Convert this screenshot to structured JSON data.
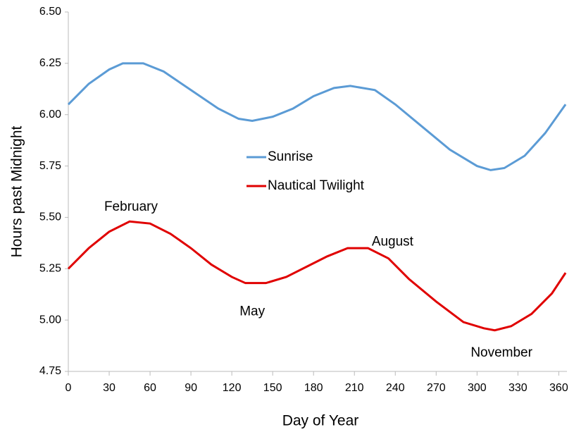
{
  "chart_data": {
    "type": "line",
    "xlabel": "Day of Year",
    "ylabel": "Hours past Midnight",
    "xlim": [
      0,
      366
    ],
    "xticks": [
      0,
      30,
      60,
      90,
      120,
      150,
      180,
      210,
      240,
      270,
      300,
      330,
      360
    ],
    "ylim": [
      4.75,
      6.5
    ],
    "yticks": [
      {
        "value": 4.75,
        "label": "4.75"
      },
      {
        "value": 5,
        "label": "5.00"
      },
      {
        "value": 5.25,
        "label": "5.25"
      },
      {
        "value": 5.5,
        "label": "5.50"
      },
      {
        "value": 5.75,
        "label": "5.75"
      },
      {
        "value": 6,
        "label": "6.00"
      },
      {
        "value": 6.25,
        "label": "6.25"
      },
      {
        "value": 6.5,
        "label": "6.50"
      }
    ],
    "grid": false,
    "legend": "center",
    "series": [
      {
        "name": "Sunrise",
        "color": "#5b9bd5",
        "x": [
          0,
          15,
          30,
          40,
          55,
          70,
          90,
          110,
          125,
          135,
          150,
          165,
          180,
          195,
          207,
          225,
          240,
          260,
          280,
          300,
          310,
          320,
          335,
          350,
          365
        ],
        "values": [
          6.05,
          6.15,
          6.22,
          6.25,
          6.25,
          6.21,
          6.12,
          6.03,
          5.98,
          5.97,
          5.99,
          6.03,
          6.09,
          6.13,
          6.14,
          6.12,
          6.05,
          5.94,
          5.83,
          5.75,
          5.73,
          5.74,
          5.8,
          5.91,
          6.05
        ]
      },
      {
        "name": "Nautical Twilight",
        "color": "#e00000",
        "x": [
          0,
          15,
          30,
          45,
          60,
          75,
          90,
          105,
          120,
          130,
          145,
          160,
          175,
          190,
          205,
          220,
          235,
          250,
          270,
          290,
          305,
          313,
          325,
          340,
          355,
          365
        ],
        "values": [
          5.25,
          5.35,
          5.43,
          5.48,
          5.47,
          5.42,
          5.35,
          5.27,
          5.21,
          5.18,
          5.18,
          5.21,
          5.26,
          5.31,
          5.35,
          5.35,
          5.3,
          5.2,
          5.09,
          4.99,
          4.96,
          4.95,
          4.97,
          5.03,
          5.13,
          5.23
        ]
      }
    ],
    "annotations": [
      {
        "text": "February",
        "x": 46,
        "y": 5.55
      },
      {
        "text": "May",
        "x": 135,
        "y": 5.04
      },
      {
        "text": "August",
        "x": 238,
        "y": 5.38
      },
      {
        "text": "November",
        "x": 318,
        "y": 4.84
      }
    ]
  }
}
